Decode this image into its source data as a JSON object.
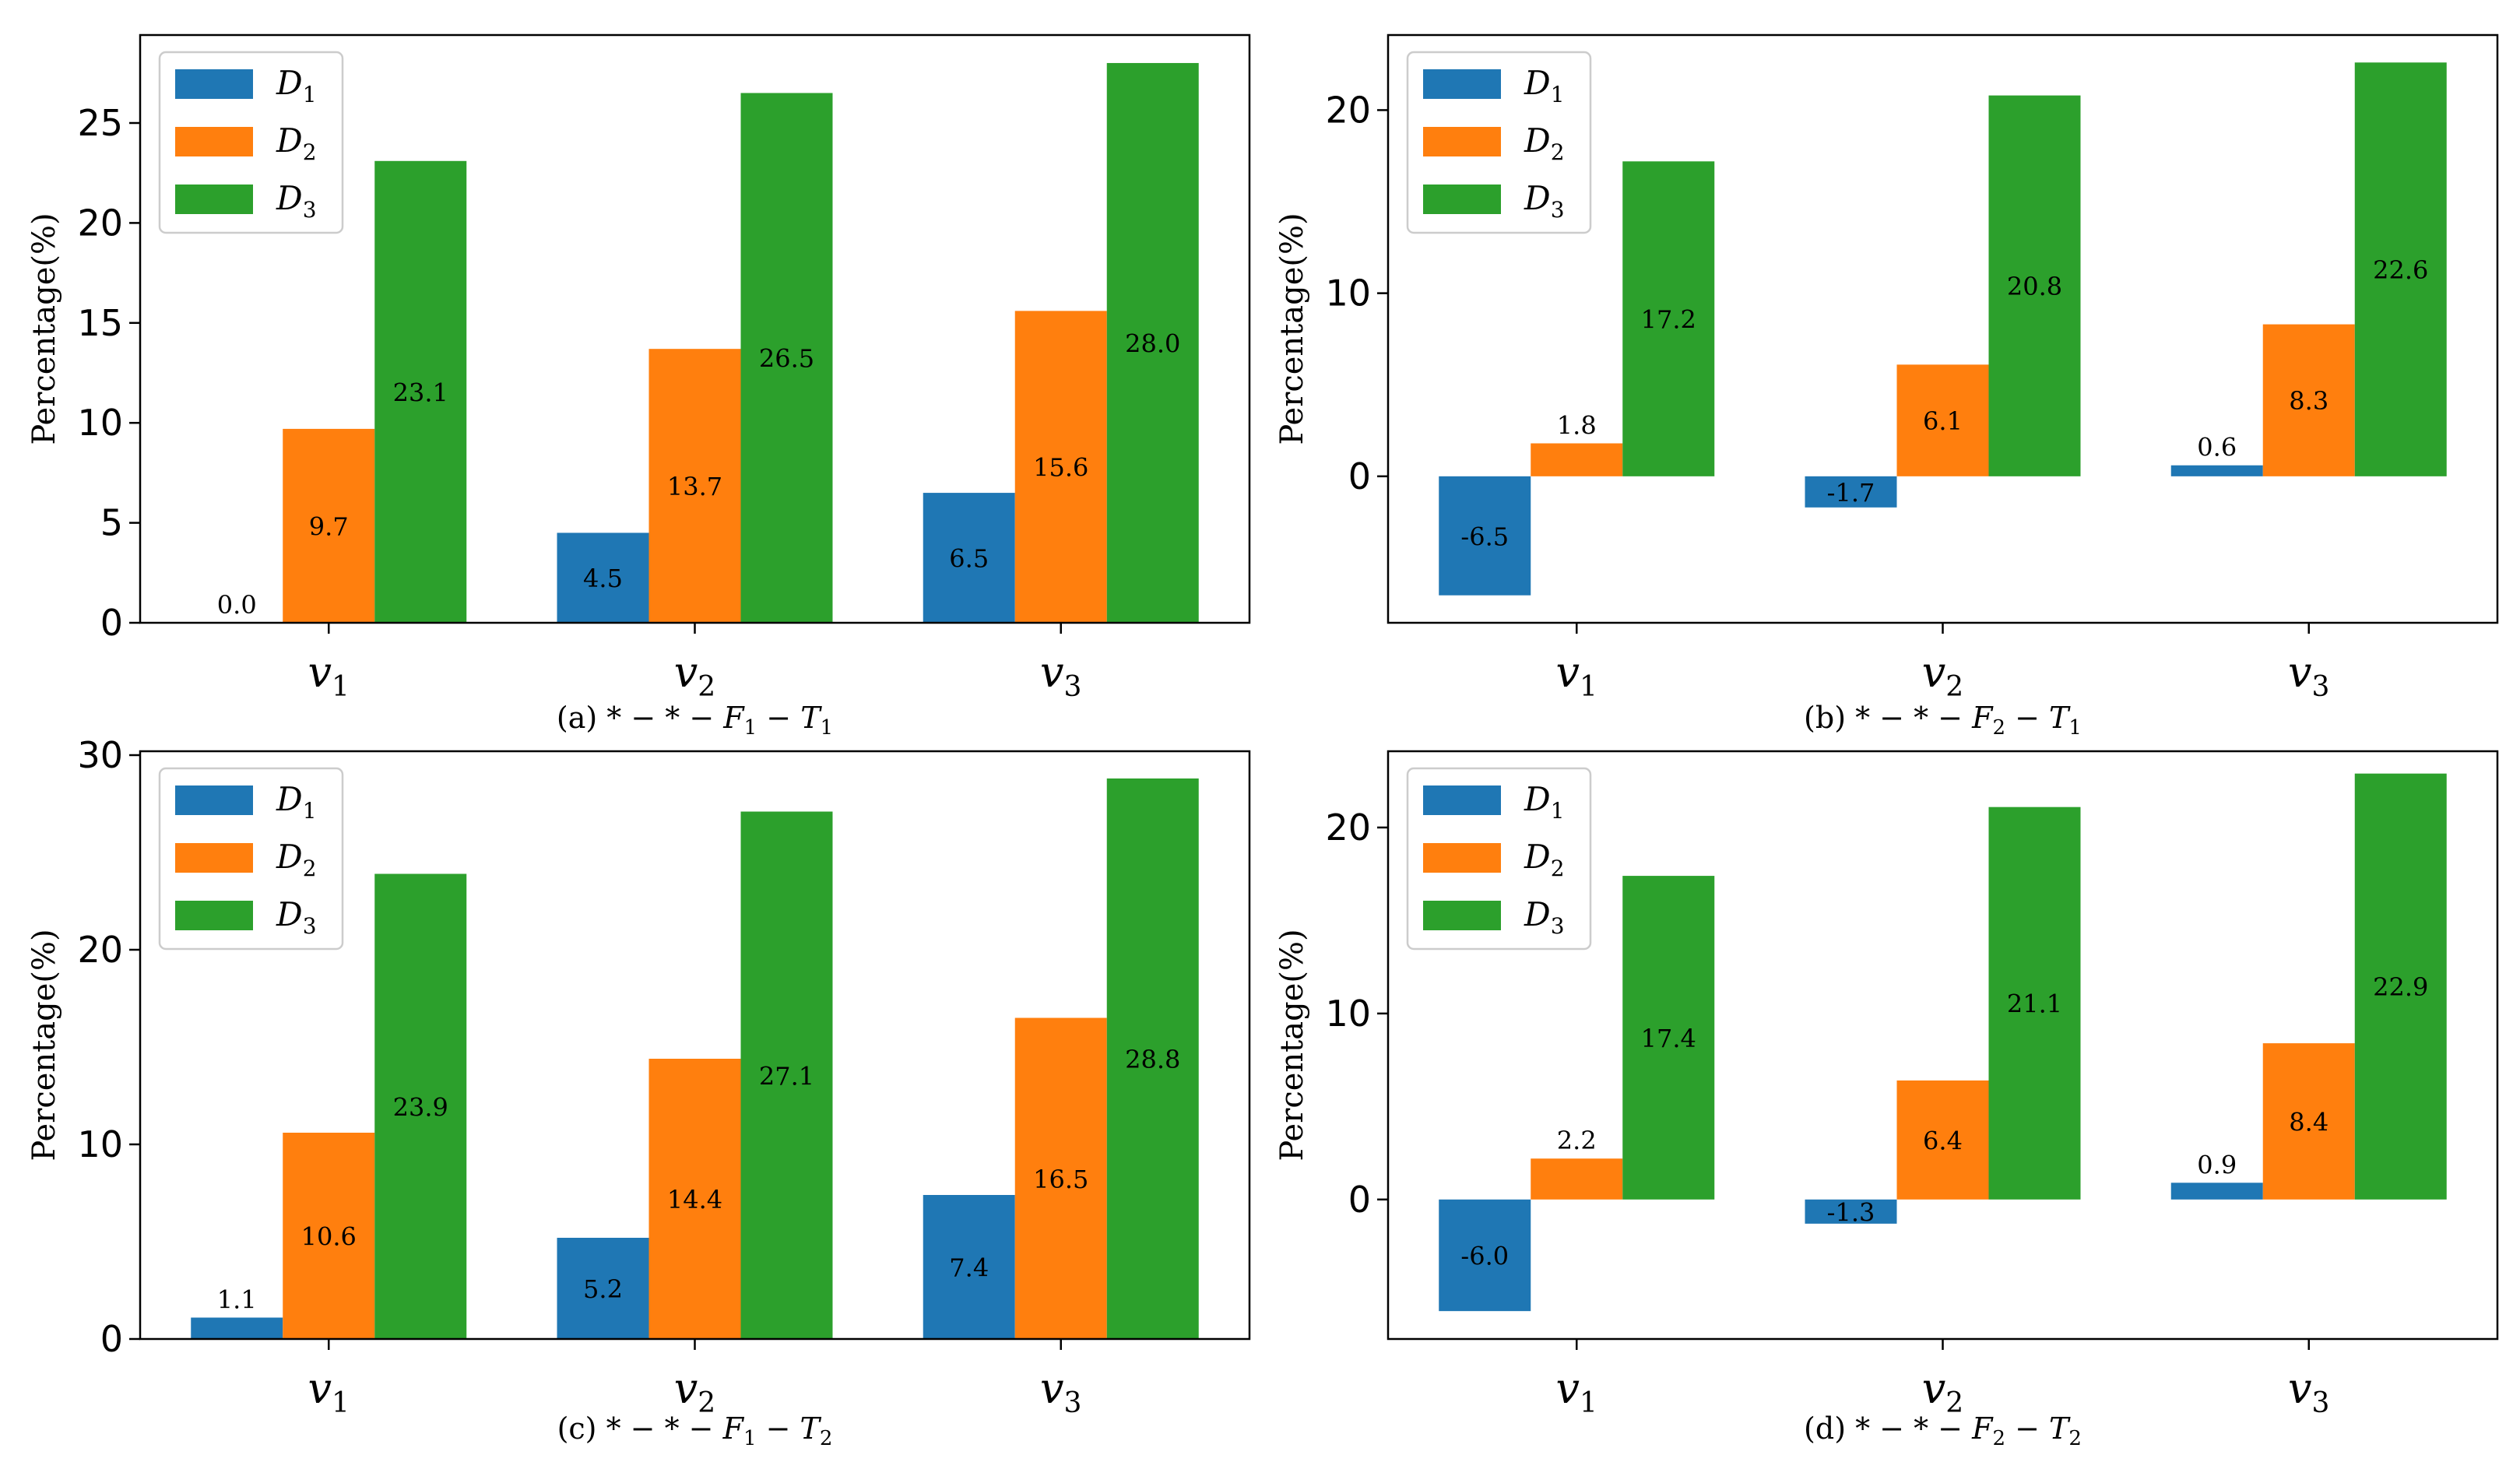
{
  "colors": {
    "D1": "#1f77b4",
    "D2": "#ff7f0e",
    "D3": "#2ca02c"
  },
  "chart_data": [
    {
      "type": "bar",
      "caption": "(a) *−*−F1−T1",
      "caption_parts": [
        "(a) * − * − ",
        "F",
        "1",
        " − ",
        "T",
        "1"
      ],
      "ylabel": "Percentage(%)",
      "categories": [
        "v1",
        "v2",
        "v3"
      ],
      "category_parts": [
        [
          "v",
          "1"
        ],
        [
          "v",
          "2"
        ],
        [
          "v",
          "3"
        ]
      ],
      "series": [
        {
          "name": "D1",
          "name_parts": [
            "D",
            "1"
          ],
          "values": [
            0.0,
            4.5,
            6.5
          ]
        },
        {
          "name": "D2",
          "name_parts": [
            "D",
            "2"
          ],
          "values": [
            9.7,
            13.7,
            15.6
          ]
        },
        {
          "name": "D3",
          "name_parts": [
            "D",
            "3"
          ],
          "values": [
            23.1,
            26.5,
            28.0
          ]
        }
      ],
      "labels": [
        [
          "0.0",
          "4.5",
          "6.5"
        ],
        [
          "9.7",
          "13.7",
          "15.6"
        ],
        [
          "23.1",
          "26.5",
          "28.0"
        ]
      ],
      "yticks": [
        0,
        5,
        10,
        15,
        20,
        25
      ],
      "ylim": [
        0,
        29.4
      ],
      "legend": "top-left"
    },
    {
      "type": "bar",
      "caption": "(b) *−*−F2−T1",
      "caption_parts": [
        "(b) * − * − ",
        "F",
        "2",
        " − ",
        "T",
        "1"
      ],
      "ylabel": "Percentage(%)",
      "categories": [
        "v1",
        "v2",
        "v3"
      ],
      "category_parts": [
        [
          "v",
          "1"
        ],
        [
          "v",
          "2"
        ],
        [
          "v",
          "3"
        ]
      ],
      "series": [
        {
          "name": "D1",
          "name_parts": [
            "D",
            "1"
          ],
          "values": [
            -6.5,
            -1.7,
            0.6
          ]
        },
        {
          "name": "D2",
          "name_parts": [
            "D",
            "2"
          ],
          "values": [
            1.8,
            6.1,
            8.3
          ]
        },
        {
          "name": "D3",
          "name_parts": [
            "D",
            "3"
          ],
          "values": [
            17.2,
            20.8,
            22.6
          ]
        }
      ],
      "labels": [
        [
          "-6.5",
          "-1.7",
          "0.6"
        ],
        [
          "1.8",
          "6.1",
          "8.3"
        ],
        [
          "17.2",
          "20.8",
          "22.6"
        ]
      ],
      "yticks": [
        0,
        10,
        20
      ],
      "ylim": [
        -8.0,
        24.1
      ],
      "legend": "top-left"
    },
    {
      "type": "bar",
      "caption": "(c) *−*−F1−T2",
      "caption_parts": [
        "(c) * − * − ",
        "F",
        "1",
        " − ",
        "T",
        "2"
      ],
      "ylabel": "Percentage(%)",
      "categories": [
        "v1",
        "v2",
        "v3"
      ],
      "category_parts": [
        [
          "v",
          "1"
        ],
        [
          "v",
          "2"
        ],
        [
          "v",
          "3"
        ]
      ],
      "series": [
        {
          "name": "D1",
          "name_parts": [
            "D",
            "1"
          ],
          "values": [
            1.1,
            5.2,
            7.4
          ]
        },
        {
          "name": "D2",
          "name_parts": [
            "D",
            "2"
          ],
          "values": [
            10.6,
            14.4,
            16.5
          ]
        },
        {
          "name": "D3",
          "name_parts": [
            "D",
            "3"
          ],
          "values": [
            23.9,
            27.1,
            28.8
          ]
        }
      ],
      "labels": [
        [
          "1.1",
          "5.2",
          "7.4"
        ],
        [
          "10.6",
          "14.4",
          "16.5"
        ],
        [
          "23.9",
          "27.1",
          "28.8"
        ]
      ],
      "yticks": [
        0,
        10,
        20,
        30
      ],
      "ylim": [
        0,
        30.2
      ],
      "legend": "top-left"
    },
    {
      "type": "bar",
      "caption": "(d) *−*−F2−T2",
      "caption_parts": [
        "(d) * − * − ",
        "F",
        "2",
        " − ",
        "T",
        "2"
      ],
      "ylabel": "Percentage(%)",
      "categories": [
        "v1",
        "v2",
        "v3"
      ],
      "category_parts": [
        [
          "v",
          "1"
        ],
        [
          "v",
          "2"
        ],
        [
          "v",
          "3"
        ]
      ],
      "series": [
        {
          "name": "D1",
          "name_parts": [
            "D",
            "1"
          ],
          "values": [
            -6.0,
            -1.3,
            0.9
          ]
        },
        {
          "name": "D2",
          "name_parts": [
            "D",
            "2"
          ],
          "values": [
            2.2,
            6.4,
            8.4
          ]
        },
        {
          "name": "D3",
          "name_parts": [
            "D",
            "3"
          ],
          "values": [
            17.4,
            21.1,
            22.9
          ]
        }
      ],
      "labels": [
        [
          "-6.0",
          "-1.3",
          "0.9"
        ],
        [
          "2.2",
          "6.4",
          "8.4"
        ],
        [
          "17.4",
          "21.1",
          "22.9"
        ]
      ],
      "yticks": [
        0,
        10,
        20
      ],
      "ylim": [
        -7.5,
        24.1
      ],
      "legend": "top-left"
    }
  ]
}
